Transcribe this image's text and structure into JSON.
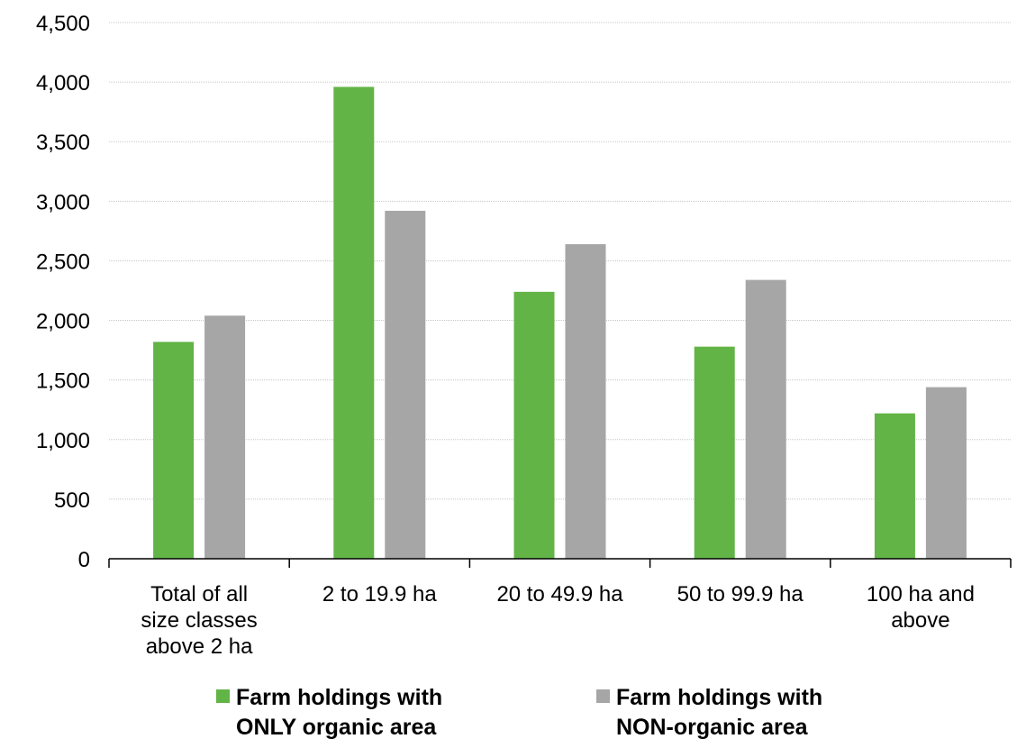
{
  "chart_data": {
    "type": "bar",
    "title": "",
    "xlabel": "",
    "ylabel": "",
    "ylim": [
      0,
      4500
    ],
    "yticks": [
      "0",
      "500",
      "1,000",
      "1,500",
      "2,000",
      "2,500",
      "3,000",
      "3,500",
      "4,000",
      "4,500"
    ],
    "ytick_values": [
      0,
      500,
      1000,
      1500,
      2000,
      2500,
      3000,
      3500,
      4000,
      4500
    ],
    "grid": true,
    "legend_position": "bottom",
    "categories": [
      [
        "Total of all",
        "size classes",
        "above 2 ha"
      ],
      [
        "2 to 19.9 ha"
      ],
      [
        "20 to 49.9 ha"
      ],
      [
        "50 to 99.9 ha"
      ],
      [
        "100 ha and",
        "above"
      ]
    ],
    "series": [
      {
        "name": [
          "Farm holdings with",
          "ONLY organic area"
        ],
        "color": "#62b446",
        "values": [
          1820,
          3960,
          2240,
          1780,
          1220
        ]
      },
      {
        "name": [
          "Farm holdings with",
          "NON-organic area"
        ],
        "color": "#a6a6a6",
        "values": [
          2040,
          2920,
          2640,
          2340,
          1440
        ]
      }
    ]
  }
}
